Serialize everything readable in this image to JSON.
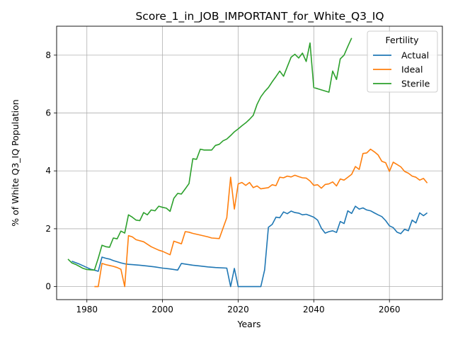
{
  "chart_data": {
    "type": "line",
    "title": "Score_1_in_JOB_IMPORTANT_for_White_Q3_IQ",
    "xlabel": "Years",
    "ylabel": "% of White Q3_IQ Population",
    "xlim": [
      1972,
      2074
    ],
    "ylim": [
      -0.45,
      9.0
    ],
    "xticks": [
      1980,
      2000,
      2020,
      2040,
      2060
    ],
    "yticks": [
      0,
      2,
      4,
      6,
      8
    ],
    "grid": true,
    "legend": {
      "title": "Fertility",
      "position": "top-right"
    },
    "series": [
      {
        "name": "Actual",
        "color": "#1f77b4",
        "points": [
          [
            1976,
            0.88
          ],
          [
            1977,
            0.83
          ],
          [
            1978,
            0.78
          ],
          [
            1979,
            0.72
          ],
          [
            1980,
            0.66
          ],
          [
            1981,
            0.6
          ],
          [
            1982,
            0.57
          ],
          [
            1983,
            0.53
          ],
          [
            1984,
            1.02
          ],
          [
            1985,
            0.98
          ],
          [
            1986,
            0.95
          ],
          [
            1987,
            0.9
          ],
          [
            1988,
            0.86
          ],
          [
            1989,
            0.82
          ],
          [
            1990,
            0.79
          ],
          [
            1991,
            0.77
          ],
          [
            1992,
            0.76
          ],
          [
            1994,
            0.74
          ],
          [
            1996,
            0.71
          ],
          [
            1998,
            0.68
          ],
          [
            2000,
            0.64
          ],
          [
            2002,
            0.61
          ],
          [
            2004,
            0.57
          ],
          [
            2005,
            0.8
          ],
          [
            2006,
            0.78
          ],
          [
            2008,
            0.74
          ],
          [
            2010,
            0.71
          ],
          [
            2012,
            0.68
          ],
          [
            2014,
            0.66
          ],
          [
            2017,
            0.64
          ],
          [
            2018,
            0.0
          ],
          [
            2019,
            0.63
          ],
          [
            2020,
            0.0
          ],
          [
            2026,
            0.0
          ],
          [
            2027,
            0.58
          ],
          [
            2028,
            2.05
          ],
          [
            2029,
            2.15
          ],
          [
            2030,
            2.4
          ],
          [
            2031,
            2.38
          ],
          [
            2032,
            2.58
          ],
          [
            2033,
            2.52
          ],
          [
            2034,
            2.61
          ],
          [
            2035,
            2.56
          ],
          [
            2036,
            2.54
          ],
          [
            2037,
            2.48
          ],
          [
            2038,
            2.5
          ],
          [
            2039,
            2.45
          ],
          [
            2040,
            2.4
          ],
          [
            2041,
            2.3
          ],
          [
            2042,
            2.02
          ],
          [
            2043,
            1.85
          ],
          [
            2044,
            1.9
          ],
          [
            2045,
            1.93
          ],
          [
            2046,
            1.87
          ],
          [
            2047,
            2.25
          ],
          [
            2048,
            2.18
          ],
          [
            2049,
            2.62
          ],
          [
            2050,
            2.53
          ],
          [
            2051,
            2.78
          ],
          [
            2052,
            2.68
          ],
          [
            2053,
            2.72
          ],
          [
            2054,
            2.65
          ],
          [
            2055,
            2.62
          ],
          [
            2056,
            2.55
          ],
          [
            2057,
            2.48
          ],
          [
            2058,
            2.42
          ],
          [
            2059,
            2.28
          ],
          [
            2060,
            2.1
          ],
          [
            2061,
            2.04
          ],
          [
            2062,
            1.88
          ],
          [
            2063,
            1.83
          ],
          [
            2064,
            1.98
          ],
          [
            2065,
            1.93
          ],
          [
            2066,
            2.3
          ],
          [
            2067,
            2.2
          ],
          [
            2068,
            2.55
          ],
          [
            2069,
            2.45
          ],
          [
            2070,
            2.55
          ]
        ]
      },
      {
        "name": "Ideal",
        "color": "#ff7f0e",
        "points": [
          [
            1982,
            0.0
          ],
          [
            1983,
            0.0
          ],
          [
            1984,
            0.8
          ],
          [
            1985,
            0.76
          ],
          [
            1986,
            0.73
          ],
          [
            1987,
            0.7
          ],
          [
            1988,
            0.66
          ],
          [
            1989,
            0.6
          ],
          [
            1990,
            0.0
          ],
          [
            1991,
            1.76
          ],
          [
            1992,
            1.72
          ],
          [
            1993,
            1.62
          ],
          [
            1995,
            1.55
          ],
          [
            1997,
            1.38
          ],
          [
            1999,
            1.26
          ],
          [
            2000,
            1.22
          ],
          [
            2002,
            1.1
          ],
          [
            2003,
            1.57
          ],
          [
            2005,
            1.48
          ],
          [
            2006,
            1.9
          ],
          [
            2007,
            1.88
          ],
          [
            2008,
            1.84
          ],
          [
            2010,
            1.78
          ],
          [
            2012,
            1.72
          ],
          [
            2013,
            1.68
          ],
          [
            2015,
            1.66
          ],
          [
            2017,
            2.38
          ],
          [
            2018,
            3.78
          ],
          [
            2019,
            2.68
          ],
          [
            2020,
            3.55
          ],
          [
            2021,
            3.6
          ],
          [
            2022,
            3.5
          ],
          [
            2023,
            3.6
          ],
          [
            2024,
            3.42
          ],
          [
            2025,
            3.48
          ],
          [
            2026,
            3.38
          ],
          [
            2027,
            3.4
          ],
          [
            2028,
            3.42
          ],
          [
            2029,
            3.52
          ],
          [
            2030,
            3.49
          ],
          [
            2031,
            3.78
          ],
          [
            2032,
            3.76
          ],
          [
            2033,
            3.82
          ],
          [
            2034,
            3.79
          ],
          [
            2035,
            3.85
          ],
          [
            2036,
            3.8
          ],
          [
            2037,
            3.76
          ],
          [
            2038,
            3.75
          ],
          [
            2039,
            3.65
          ],
          [
            2040,
            3.5
          ],
          [
            2041,
            3.52
          ],
          [
            2042,
            3.4
          ],
          [
            2043,
            3.53
          ],
          [
            2044,
            3.55
          ],
          [
            2045,
            3.62
          ],
          [
            2046,
            3.48
          ],
          [
            2047,
            3.72
          ],
          [
            2048,
            3.68
          ],
          [
            2049,
            3.78
          ],
          [
            2050,
            3.88
          ],
          [
            2051,
            4.15
          ],
          [
            2052,
            4.05
          ],
          [
            2053,
            4.6
          ],
          [
            2054,
            4.62
          ],
          [
            2055,
            4.75
          ],
          [
            2056,
            4.66
          ],
          [
            2057,
            4.55
          ],
          [
            2058,
            4.33
          ],
          [
            2059,
            4.28
          ],
          [
            2060,
            3.98
          ],
          [
            2061,
            4.3
          ],
          [
            2062,
            4.22
          ],
          [
            2063,
            4.14
          ],
          [
            2064,
            3.98
          ],
          [
            2065,
            3.92
          ],
          [
            2066,
            3.82
          ],
          [
            2067,
            3.78
          ],
          [
            2068,
            3.68
          ],
          [
            2069,
            3.74
          ],
          [
            2070,
            3.58
          ]
        ]
      },
      {
        "name": "Sterile",
        "color": "#2ca02c",
        "points": [
          [
            1975,
            0.95
          ],
          [
            1976,
            0.82
          ],
          [
            1977,
            0.77
          ],
          [
            1978,
            0.7
          ],
          [
            1979,
            0.63
          ],
          [
            1980,
            0.59
          ],
          [
            1981,
            0.58
          ],
          [
            1982,
            0.57
          ],
          [
            1983,
            0.98
          ],
          [
            1984,
            1.43
          ],
          [
            1985,
            1.38
          ],
          [
            1986,
            1.36
          ],
          [
            1987,
            1.68
          ],
          [
            1988,
            1.65
          ],
          [
            1989,
            1.92
          ],
          [
            1990,
            1.85
          ],
          [
            1991,
            2.48
          ],
          [
            1992,
            2.4
          ],
          [
            1993,
            2.3
          ],
          [
            1994,
            2.28
          ],
          [
            1995,
            2.56
          ],
          [
            1996,
            2.48
          ],
          [
            1997,
            2.65
          ],
          [
            1998,
            2.62
          ],
          [
            1999,
            2.78
          ],
          [
            2000,
            2.74
          ],
          [
            2001,
            2.71
          ],
          [
            2002,
            2.6
          ],
          [
            2003,
            3.05
          ],
          [
            2004,
            3.22
          ],
          [
            2005,
            3.2
          ],
          [
            2006,
            3.38
          ],
          [
            2007,
            3.56
          ],
          [
            2008,
            4.42
          ],
          [
            2009,
            4.4
          ],
          [
            2010,
            4.75
          ],
          [
            2011,
            4.72
          ],
          [
            2012,
            4.72
          ],
          [
            2013,
            4.72
          ],
          [
            2014,
            4.88
          ],
          [
            2015,
            4.92
          ],
          [
            2016,
            5.04
          ],
          [
            2017,
            5.1
          ],
          [
            2018,
            5.22
          ],
          [
            2019,
            5.35
          ],
          [
            2020,
            5.45
          ],
          [
            2021,
            5.56
          ],
          [
            2022,
            5.66
          ],
          [
            2023,
            5.78
          ],
          [
            2024,
            5.92
          ],
          [
            2025,
            6.3
          ],
          [
            2026,
            6.56
          ],
          [
            2027,
            6.74
          ],
          [
            2028,
            6.88
          ],
          [
            2029,
            7.08
          ],
          [
            2030,
            7.26
          ],
          [
            2031,
            7.45
          ],
          [
            2032,
            7.27
          ],
          [
            2033,
            7.6
          ],
          [
            2034,
            7.93
          ],
          [
            2035,
            8.03
          ],
          [
            2036,
            7.9
          ],
          [
            2037,
            8.07
          ],
          [
            2038,
            7.78
          ],
          [
            2039,
            8.42
          ],
          [
            2040,
            6.88
          ],
          [
            2041,
            6.84
          ],
          [
            2042,
            6.8
          ],
          [
            2044,
            6.72
          ],
          [
            2045,
            7.45
          ],
          [
            2046,
            7.16
          ],
          [
            2047,
            7.87
          ],
          [
            2048,
            8.0
          ],
          [
            2049,
            8.3
          ],
          [
            2050,
            8.59
          ]
        ]
      }
    ]
  }
}
